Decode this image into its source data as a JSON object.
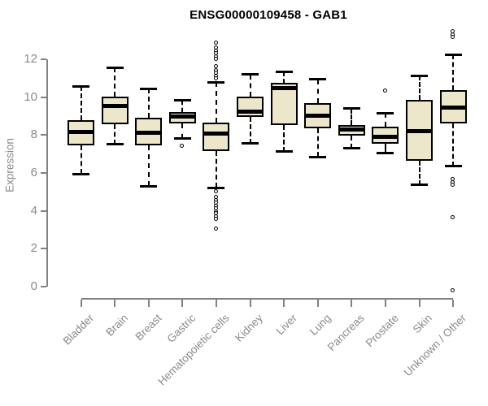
{
  "chart_data": {
    "type": "boxplot",
    "title": "ENSG00000109458 - GAB1",
    "ylabel": "Expression",
    "xlabel": "",
    "ylim": [
      0,
      12
    ],
    "yticks": [
      0,
      2,
      4,
      6,
      8,
      10,
      12
    ],
    "grid": false,
    "legend": null,
    "categories": [
      "Bladder",
      "Brain",
      "Breast",
      "Gastric",
      "Hematopoietic cells",
      "Kidney",
      "Liver",
      "Lung",
      "Pancreas",
      "Prostate",
      "Skin",
      "Unknown / Other"
    ],
    "boxes": [
      {
        "category": "Bladder",
        "whisker_low": 5.95,
        "q1": 7.45,
        "median": 8.18,
        "q3": 8.8,
        "whisker_high": 10.57,
        "outliers": []
      },
      {
        "category": "Brain",
        "whisker_low": 7.5,
        "q1": 8.56,
        "median": 9.52,
        "q3": 10.04,
        "whisker_high": 11.56,
        "outliers": []
      },
      {
        "category": "Breast",
        "whisker_low": 5.3,
        "q1": 7.45,
        "median": 8.13,
        "q3": 8.92,
        "whisker_high": 10.45,
        "outliers": []
      },
      {
        "category": "Gastric",
        "whisker_low": 7.8,
        "q1": 8.6,
        "median": 8.99,
        "q3": 9.23,
        "whisker_high": 9.82,
        "outliers": [
          7.42
        ]
      },
      {
        "category": "Hematopoietic cells",
        "whisker_low": 5.21,
        "q1": 7.17,
        "median": 8.06,
        "q3": 8.66,
        "whisker_high": 10.78,
        "outliers": [
          12.85,
          12.6,
          12.45,
          12.3,
          12.15,
          12.0,
          11.6,
          11.4,
          11.25,
          11.1,
          10.95,
          5.0,
          4.7,
          4.55,
          4.4,
          4.25,
          4.1,
          3.95,
          3.85,
          3.7,
          3.55,
          3.05
        ]
      },
      {
        "category": "Kidney",
        "whisker_low": 7.56,
        "q1": 8.95,
        "median": 9.25,
        "q3": 10.02,
        "whisker_high": 11.19,
        "outliers": []
      },
      {
        "category": "Liver",
        "whisker_low": 7.13,
        "q1": 8.53,
        "median": 10.47,
        "q3": 10.77,
        "whisker_high": 11.33,
        "outliers": []
      },
      {
        "category": "Lung",
        "whisker_low": 6.85,
        "q1": 8.34,
        "median": 9.0,
        "q3": 9.7,
        "whisker_high": 10.94,
        "outliers": []
      },
      {
        "category": "Pancreas",
        "whisker_low": 7.3,
        "q1": 7.96,
        "median": 8.29,
        "q3": 8.52,
        "whisker_high": 9.39,
        "outliers": []
      },
      {
        "category": "Prostate",
        "whisker_low": 7.06,
        "q1": 7.56,
        "median": 7.9,
        "q3": 8.44,
        "whisker_high": 9.17,
        "outliers": [
          10.32
        ]
      },
      {
        "category": "Skin",
        "whisker_low": 5.37,
        "q1": 6.66,
        "median": 8.22,
        "q3": 9.87,
        "whisker_high": 11.13,
        "outliers": []
      },
      {
        "category": "Unknown / Other",
        "whisker_low": 6.35,
        "q1": 8.63,
        "median": 9.44,
        "q3": 10.37,
        "whisker_high": 12.25,
        "outliers": [
          13.45,
          13.3,
          13.15,
          5.65,
          5.5,
          5.35,
          3.65,
          -0.2
        ]
      }
    ],
    "colors": {
      "box_fill": "#ece7cb",
      "box_border": "#000000",
      "median": "#000000",
      "whisker": "#000000",
      "axis": "#828282",
      "tick_label": "#8a8a8a",
      "title": "#000000",
      "background": "#ffffff"
    }
  }
}
